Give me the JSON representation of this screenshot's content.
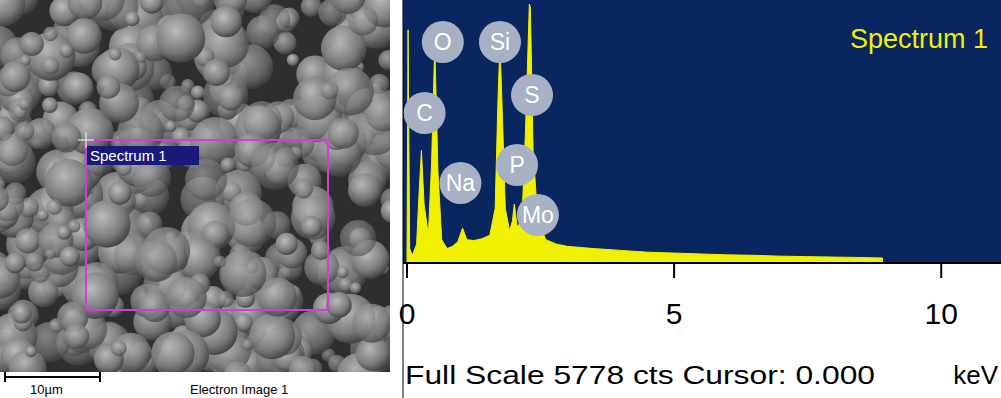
{
  "electron_image": {
    "region_label": "Spectrum 1",
    "scale_bar_label": "10µm",
    "caption": "Electron Image 1"
  },
  "chart_data": {
    "type": "area",
    "title": "Spectrum 1",
    "x_label": "keV",
    "footer": "Full Scale 5778 cts Cursor: 0.000",
    "color": "#f0f000",
    "x": [
      0,
      0.02,
      0.05,
      0.1,
      0.18,
      0.22,
      0.27,
      0.32,
      0.4,
      0.46,
      0.52,
      0.58,
      0.65,
      0.75,
      0.85,
      0.95,
      1.04,
      1.12,
      1.25,
      1.4,
      1.55,
      1.65,
      1.7,
      1.74,
      1.78,
      1.84,
      1.92,
      1.97,
      2.01,
      2.06,
      2.15,
      2.22,
      2.29,
      2.31,
      2.36,
      2.45,
      2.6,
      2.8,
      3.0,
      3.5,
      4.0,
      4.5,
      5.0,
      5.5,
      6.0,
      6.5,
      7.0,
      7.5,
      8.0,
      8.5,
      8.9
    ],
    "values": [
      0,
      5200,
      300,
      150,
      400,
      1400,
      2500,
      1300,
      600,
      2200,
      4880,
      2000,
      500,
      300,
      350,
      450,
      760,
      500,
      480,
      520,
      600,
      1200,
      3500,
      4900,
      3500,
      1200,
      700,
      900,
      1300,
      800,
      900,
      3000,
      5778,
      5700,
      2500,
      900,
      500,
      400,
      350,
      300,
      260,
      220,
      200,
      180,
      160,
      150,
      130,
      120,
      110,
      100,
      90
    ],
    "xlim": [
      0,
      11.1
    ],
    "xticks": [
      0,
      5,
      10
    ],
    "ylim": [
      0,
      5778
    ],
    "tick_labels": "x",
    "grid": false,
    "peak_labels": [
      {
        "label": "O",
        "x": 0.67
      },
      {
        "label": "Si",
        "x": 1.74
      },
      {
        "label": "C",
        "x": 0.33
      },
      {
        "label": "S",
        "x": 2.34
      },
      {
        "label": "Na",
        "x": 1.0
      },
      {
        "label": "P",
        "x": 2.06
      },
      {
        "label": "Mo",
        "x": 2.45
      }
    ]
  }
}
